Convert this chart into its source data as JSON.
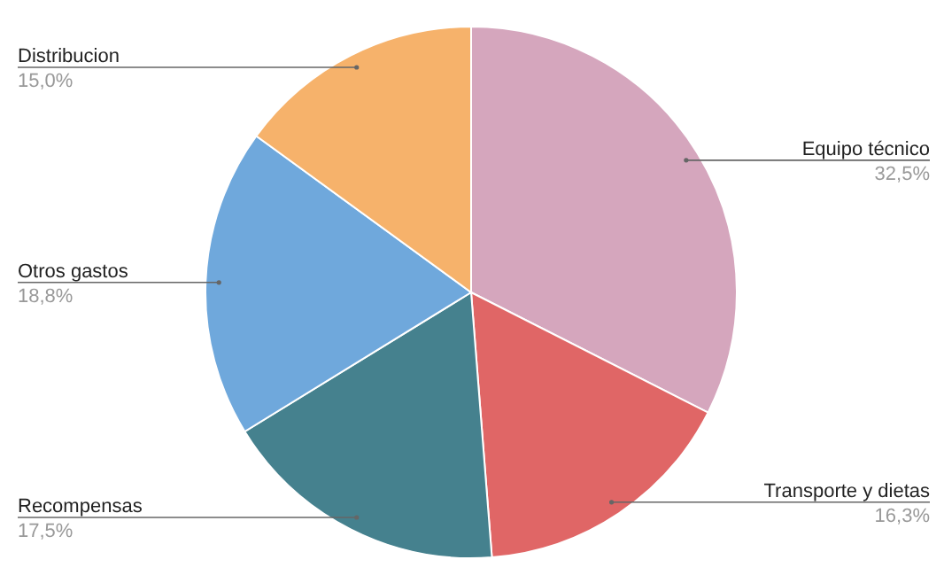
{
  "chart_data": {
    "type": "pie",
    "categories": [
      "Equipo técnico",
      "Transporte y dietas",
      "Recompensas",
      "Otros gastos",
      "Distribucion"
    ],
    "values": [
      32.5,
      16.3,
      17.5,
      18.8,
      15.0
    ],
    "colors": [
      "#d5a6bd",
      "#e06666",
      "#45818e",
      "#6fa8dc",
      "#f6b26b"
    ],
    "value_labels": [
      "32,5%",
      "16,3%",
      "17,5%",
      "18,8%",
      "15,0%"
    ]
  }
}
